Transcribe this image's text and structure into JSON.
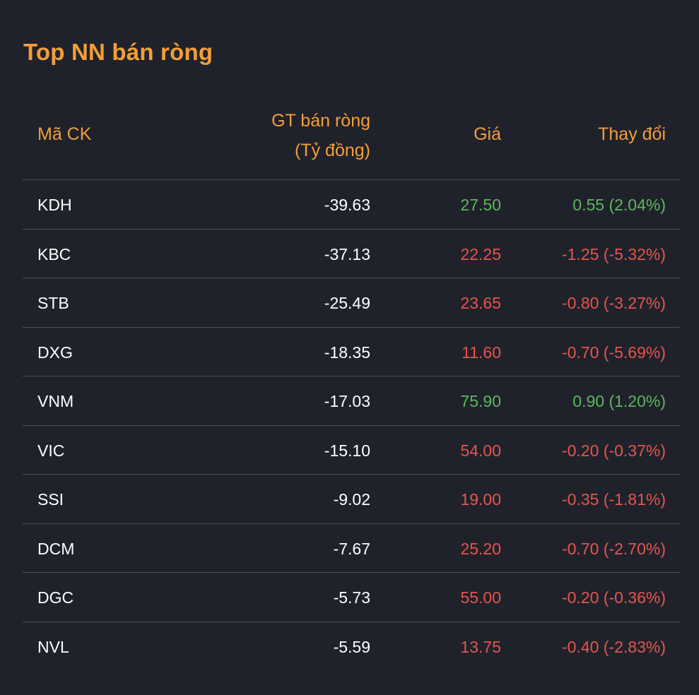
{
  "title": "Top NN bán ròng",
  "colors": {
    "background": "#20222b",
    "accent": "#f29e38",
    "up": "#5cb85c",
    "down": "#e5554c",
    "divider": "#4a4d5b"
  },
  "headers": {
    "code": "Mã CK",
    "net_line1": "GT bán ròng",
    "net_line2": "(Tỷ đồng)",
    "price": "Giá",
    "change": "Thay đổi"
  },
  "rows": [
    {
      "code": "KDH",
      "net": "-39.63",
      "price": "27.50",
      "change": "0.55 (2.04%)",
      "trend": "up"
    },
    {
      "code": "KBC",
      "net": "-37.13",
      "price": "22.25",
      "change": "-1.25 (-5.32%)",
      "trend": "down"
    },
    {
      "code": "STB",
      "net": "-25.49",
      "price": "23.65",
      "change": "-0.80 (-3.27%)",
      "trend": "down"
    },
    {
      "code": "DXG",
      "net": "-18.35",
      "price": "11.60",
      "change": "-0.70 (-5.69%)",
      "trend": "down"
    },
    {
      "code": "VNM",
      "net": "-17.03",
      "price": "75.90",
      "change": "0.90 (1.20%)",
      "trend": "up"
    },
    {
      "code": "VIC",
      "net": "-15.10",
      "price": "54.00",
      "change": "-0.20 (-0.37%)",
      "trend": "down"
    },
    {
      "code": "SSI",
      "net": "-9.02",
      "price": "19.00",
      "change": "-0.35 (-1.81%)",
      "trend": "down"
    },
    {
      "code": "DCM",
      "net": "-7.67",
      "price": "25.20",
      "change": "-0.70 (-2.70%)",
      "trend": "down"
    },
    {
      "code": "DGC",
      "net": "-5.73",
      "price": "55.00",
      "change": "-0.20 (-0.36%)",
      "trend": "down"
    },
    {
      "code": "NVL",
      "net": "-5.59",
      "price": "13.75",
      "change": "-0.40 (-2.83%)",
      "trend": "down"
    }
  ]
}
